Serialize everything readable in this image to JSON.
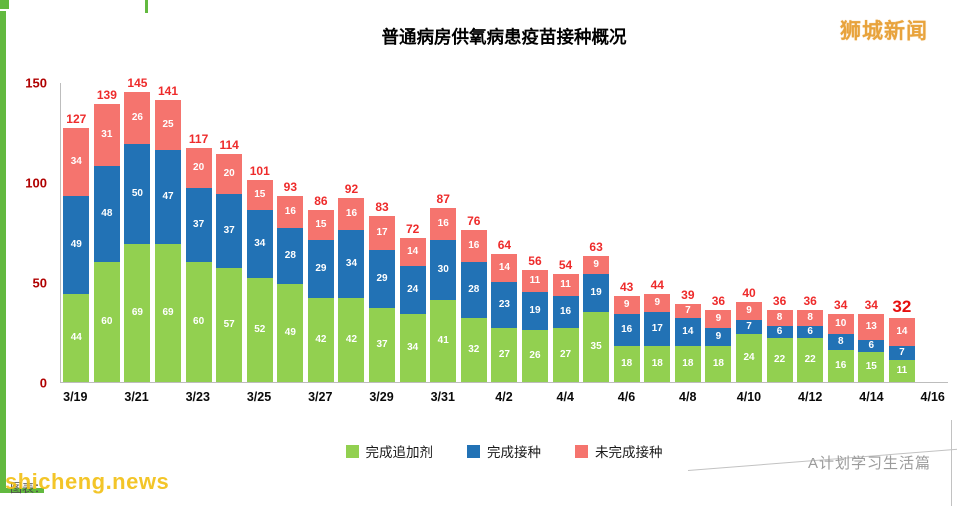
{
  "chart_data": {
    "type": "bar",
    "stacked": true,
    "title": "普通病房供氧病患疫苗接种概况",
    "categories": [
      "3/19",
      "3/20",
      "3/21",
      "3/22",
      "3/23",
      "3/24",
      "3/25",
      "3/26",
      "3/27",
      "3/28",
      "3/29",
      "3/30",
      "3/31",
      "4/1",
      "4/2",
      "4/3",
      "4/4",
      "4/5",
      "4/6",
      "4/7",
      "4/8",
      "4/9",
      "4/10",
      "4/11",
      "4/12",
      "4/13",
      "4/14",
      "4/15"
    ],
    "x_tick_labels": [
      "3/19",
      "3/21",
      "3/23",
      "3/25",
      "3/27",
      "3/29",
      "3/31",
      "4/2",
      "4/4",
      "4/6",
      "4/8",
      "4/10",
      "4/12",
      "4/14",
      "4/16"
    ],
    "series": [
      {
        "name": "完成追加剂",
        "color": "#92d050",
        "values": [
          44,
          60,
          69,
          69,
          60,
          57,
          52,
          49,
          42,
          42,
          37,
          34,
          41,
          32,
          27,
          26,
          27,
          35,
          18,
          18,
          18,
          18,
          24,
          22,
          22,
          16,
          15,
          11
        ]
      },
      {
        "name": "完成接种",
        "color": "#2272b5",
        "values": [
          49,
          48,
          50,
          47,
          37,
          37,
          34,
          28,
          29,
          34,
          29,
          24,
          30,
          28,
          23,
          19,
          16,
          19,
          16,
          17,
          14,
          9,
          7,
          6,
          6,
          8,
          6,
          7
        ]
      },
      {
        "name": "未完成接种",
        "color": "#f5746e",
        "values": [
          34,
          31,
          26,
          25,
          20,
          20,
          15,
          16,
          15,
          16,
          17,
          14,
          16,
          16,
          14,
          11,
          11,
          9,
          9,
          9,
          7,
          9,
          9,
          8,
          8,
          10,
          13,
          14
        ]
      }
    ],
    "totals": [
      127,
      139,
      145,
      141,
      117,
      114,
      101,
      93,
      86,
      92,
      83,
      72,
      87,
      76,
      64,
      56,
      54,
      63,
      43,
      44,
      39,
      36,
      40,
      36,
      36,
      34,
      34,
      32
    ],
    "ylim": [
      0,
      150
    ],
    "y_ticks": [
      0,
      50,
      100,
      150
    ],
    "grid": false,
    "legend_position": "bottom",
    "highlight_last_total": true
  },
  "header": {
    "brand": "狮城新闻"
  },
  "watermarks": {
    "bottom_right": "A计划学习生活篇",
    "bottom_left_overlay": "shicheng.news",
    "bottom_left_caption": "图表："
  },
  "colors": {
    "total_label": "#ee2b2b",
    "y_label": "#b00000",
    "brand": "#e8a33c",
    "accent_strip": "#62b93f",
    "overlay_yellow": "#f2c117"
  }
}
